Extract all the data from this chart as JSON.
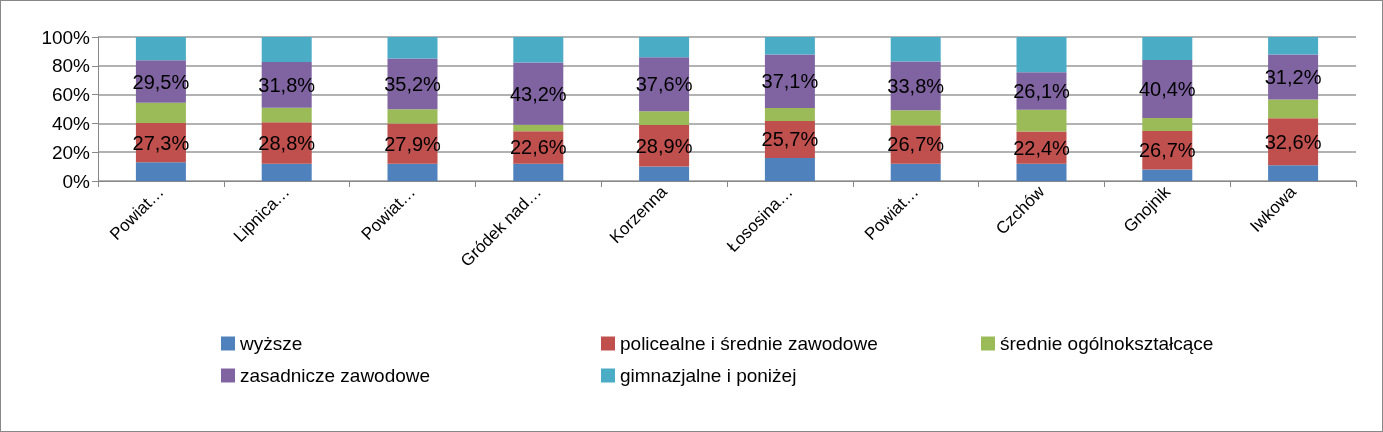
{
  "chart_data": {
    "type": "bar",
    "stacked": true,
    "categories": [
      "Powiat…",
      "Lipnica…",
      "Powiat…",
      "Gródek nad…",
      "Korzenna",
      "Łososina…",
      "Powiat…",
      "Czchów",
      "Gnojnik",
      "Iwkowa"
    ],
    "series": [
      {
        "name": "wyższe",
        "color": "#4f81bd",
        "values": [
          13,
          12,
          12,
          12,
          10,
          16,
          12,
          12,
          8,
          11
        ]
      },
      {
        "name": "policealne i średnie zawodowe",
        "color": "#c0504d",
        "values": [
          27.3,
          28.8,
          27.9,
          22.6,
          28.9,
          25.7,
          26.7,
          22.4,
          26.7,
          32.6
        ],
        "value_labels": [
          "27,3%",
          "28,8%",
          "27,9%",
          "22,6%",
          "28,9%",
          "25,7%",
          "26,7%",
          "22,4%",
          "26,7%",
          "32,6%"
        ]
      },
      {
        "name": "średnie ogólnokształcące",
        "color": "#9bbb59",
        "values": [
          14,
          10,
          10,
          4.5,
          9.5,
          9,
          10.5,
          15,
          9,
          13
        ]
      },
      {
        "name": "zasadnicze zawodowe",
        "color": "#8064a2",
        "values": [
          29.5,
          31.8,
          35.2,
          43.2,
          37.6,
          37.1,
          33.8,
          26.1,
          40.4,
          31.2
        ],
        "value_labels": [
          "29,5%",
          "31,8%",
          "35,2%",
          "43,2%",
          "37,6%",
          "37,1%",
          "33,8%",
          "26,1%",
          "40,4%",
          "31,2%"
        ]
      },
      {
        "name": "gimnazjalne i poniżej",
        "color": "#4bacc6",
        "values": [
          16.2,
          17.4,
          14.9,
          17.7,
          14,
          12.2,
          17,
          24.5,
          15.9,
          12.2
        ]
      }
    ],
    "ylim": [
      0,
      100
    ],
    "yticks": [
      {
        "value": 0,
        "label": "0%"
      },
      {
        "value": 20,
        "label": "20%"
      },
      {
        "value": 40,
        "label": "40%"
      },
      {
        "value": 60,
        "label": "60%"
      },
      {
        "value": 80,
        "label": "80%"
      },
      {
        "value": 100,
        "label": "100%"
      }
    ],
    "grid": "y",
    "legend": "bottom"
  }
}
